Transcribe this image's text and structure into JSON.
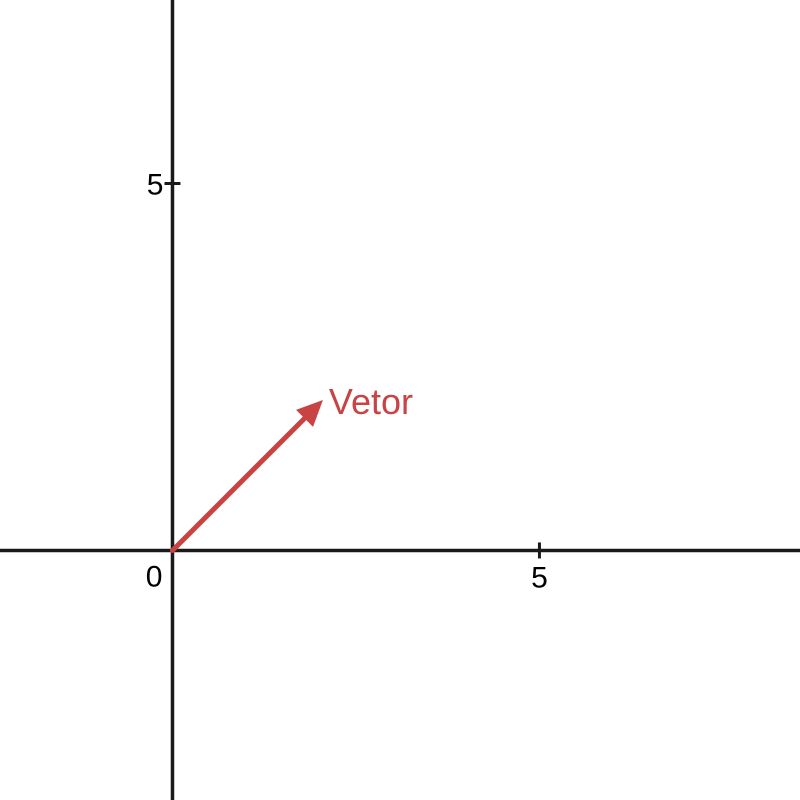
{
  "plot": {
    "x_range": [
      -2.35,
      8.55
    ],
    "y_range": [
      -3.4,
      7.5
    ],
    "axis_color": "#1a1a1a",
    "x_ticks": [
      {
        "value": 5,
        "label": "5"
      }
    ],
    "y_ticks": [
      {
        "value": 5,
        "label": "5"
      }
    ],
    "origin_label": "0"
  },
  "vector": {
    "label": "Vetor",
    "color": "#c84343",
    "tail": [
      0,
      0
    ],
    "head": [
      2.05,
      2.05
    ]
  }
}
